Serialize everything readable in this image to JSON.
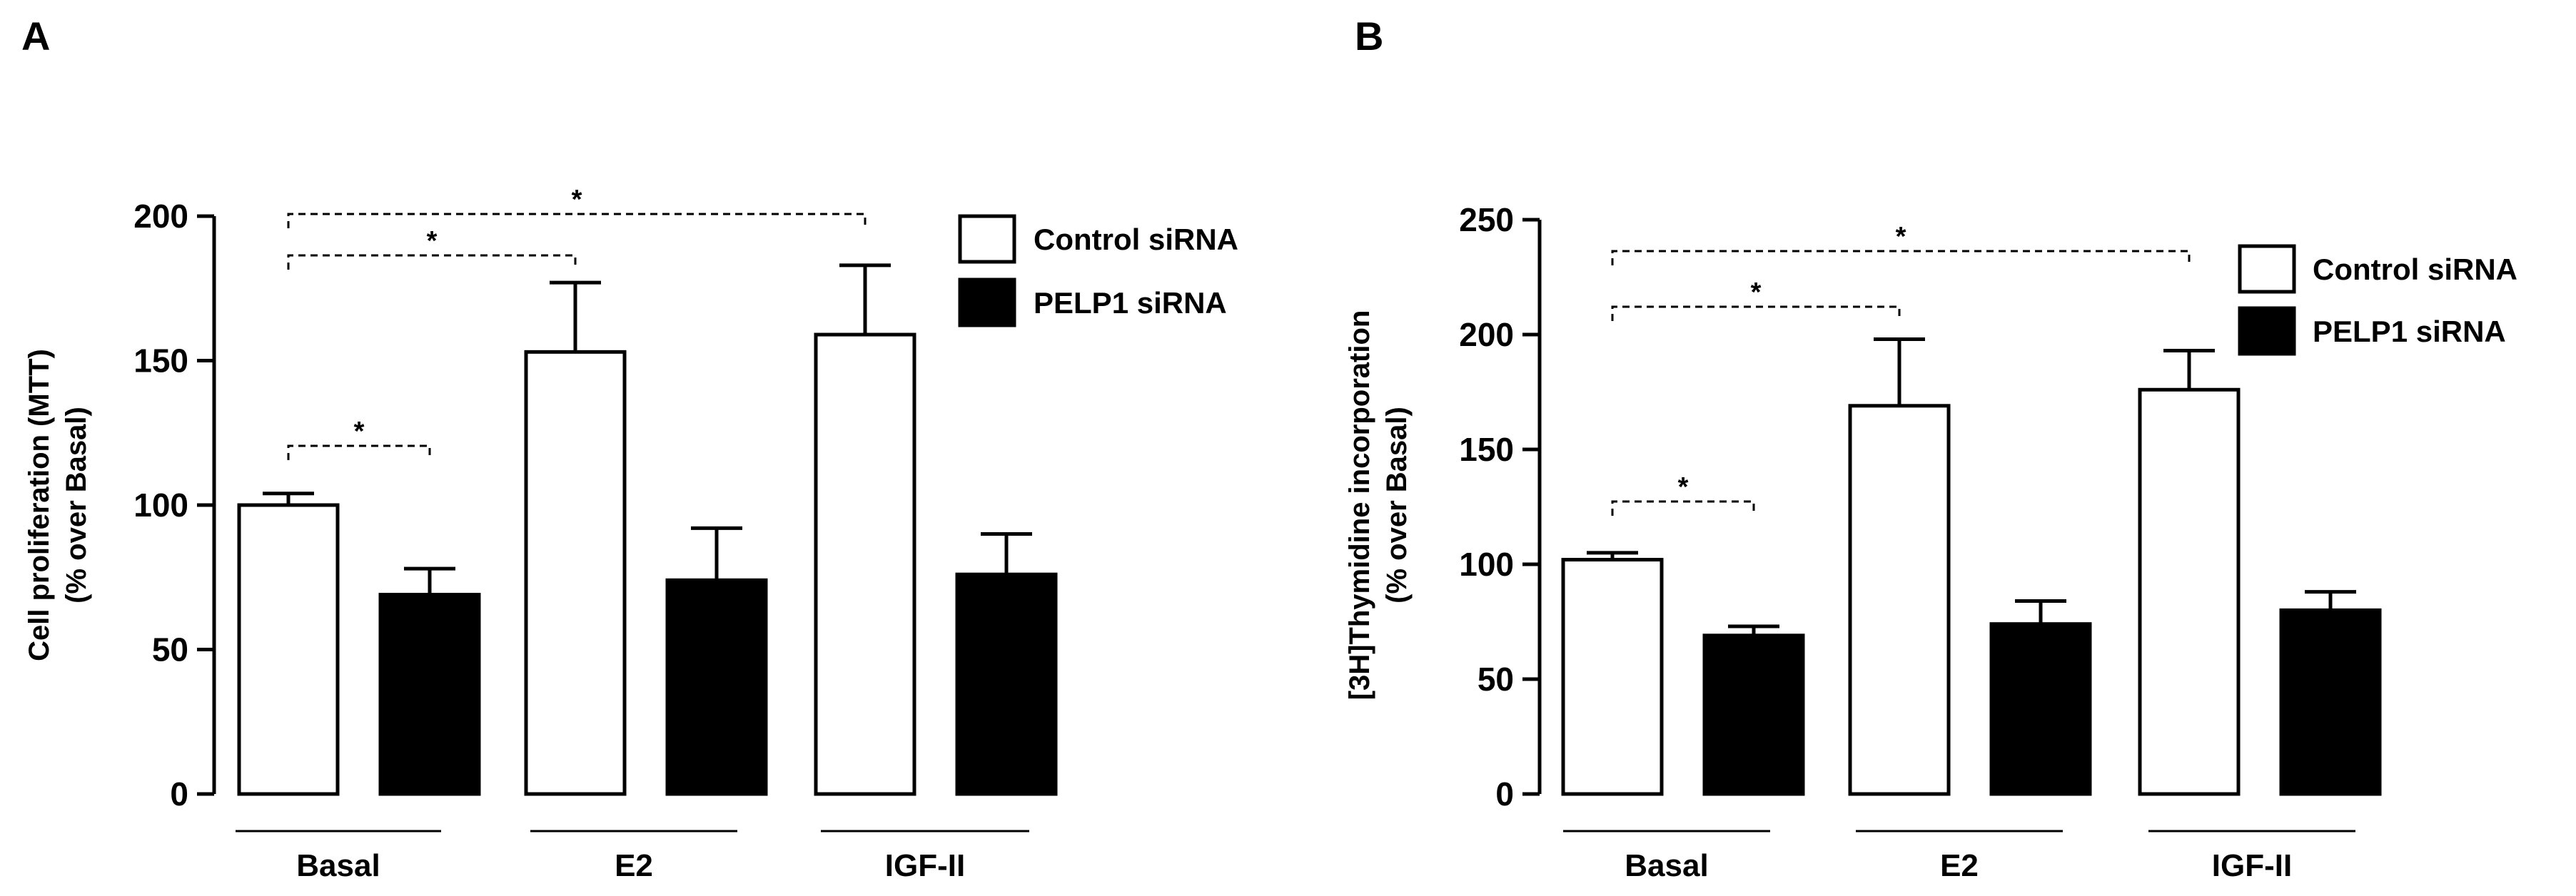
{
  "colors": {
    "control": "#ffffff",
    "pelp1": "#000000",
    "axis": "#000000",
    "background": "#ffffff"
  },
  "chart_data": [
    {
      "panel": "A",
      "type": "bar",
      "title": "",
      "xlabel": "",
      "ylabel_line1": "Cell proliferation (MTT)",
      "ylabel_line2": "(% over Basal)",
      "ylim": [
        0,
        200
      ],
      "yticks": [
        0,
        50,
        100,
        150,
        200
      ],
      "categories": [
        "Basal",
        "E2",
        "IGF-II"
      ],
      "series": [
        {
          "name": "Control siRNA",
          "color": "#ffffff",
          "values": [
            100,
            153,
            159
          ],
          "errors": [
            4,
            24,
            24
          ]
        },
        {
          "name": "PELP1 siRNA",
          "color": "#000000",
          "values": [
            69,
            74,
            76
          ],
          "errors": [
            9,
            18,
            14
          ]
        }
      ],
      "legend_position": "top-right",
      "significance": [
        {
          "from": "Basal Control siRNA",
          "to": "Basal PELP1 siRNA",
          "label": "*"
        },
        {
          "from": "Basal Control siRNA",
          "to": "E2 Control siRNA",
          "label": "*"
        },
        {
          "from": "Basal Control siRNA",
          "to": "IGF-II Control siRNA",
          "label": "*"
        }
      ]
    },
    {
      "panel": "B",
      "type": "bar",
      "title": "",
      "xlabel": "",
      "ylabel_line1": "[3H]Thymidine incorporation",
      "ylabel_line2": "(% over Basal)",
      "ylim": [
        0,
        250
      ],
      "yticks": [
        0,
        50,
        100,
        150,
        200,
        250
      ],
      "categories": [
        "Basal",
        "E2",
        "IGF-II"
      ],
      "series": [
        {
          "name": "Control siRNA",
          "color": "#ffffff",
          "values": [
            102,
            169,
            176
          ],
          "errors": [
            3,
            29,
            17
          ]
        },
        {
          "name": "PELP1 siRNA",
          "color": "#000000",
          "values": [
            69,
            74,
            80
          ],
          "errors": [
            4,
            10,
            8
          ]
        }
      ],
      "legend_position": "top-right",
      "significance": [
        {
          "from": "Basal Control siRNA",
          "to": "Basal PELP1 siRNA",
          "label": "*"
        },
        {
          "from": "Basal Control siRNA",
          "to": "E2 Control siRNA",
          "label": "*"
        },
        {
          "from": "Basal Control siRNA",
          "to": "IGF-II Control siRNA",
          "label": "*"
        }
      ]
    }
  ]
}
